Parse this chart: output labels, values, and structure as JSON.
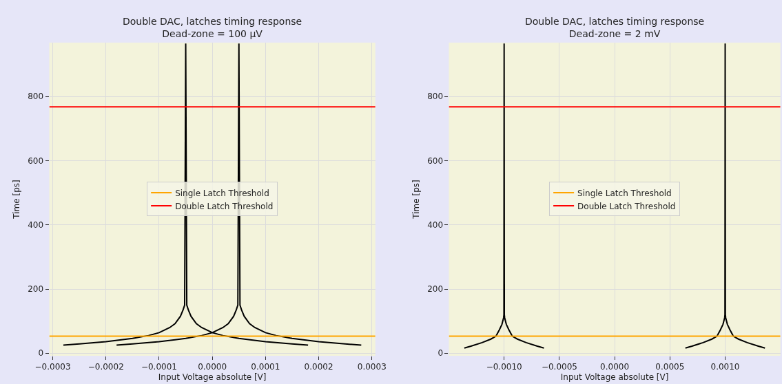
{
  "chart_data": [
    {
      "type": "line",
      "title": "Double DAC, latches timing response\nDead-zone = 100 μV",
      "xlabel": "Input Voltage absolute [V]",
      "ylabel": "Time [ps]",
      "xlim": [
        -0.0003065,
        0.0003065
      ],
      "ylim": [
        -8,
        968
      ],
      "xticks": [
        {
          "value": -0.0003,
          "label": "−0.0003"
        },
        {
          "value": -0.0002,
          "label": "−0.0002"
        },
        {
          "value": -0.0001,
          "label": "−0.0001"
        },
        {
          "value": 0,
          "label": "0.0000"
        },
        {
          "value": 0.0001,
          "label": "0.0001"
        },
        {
          "value": 0.0002,
          "label": "0.0002"
        },
        {
          "value": 0.0003,
          "label": "0.0003"
        }
      ],
      "yticks": [
        0,
        200,
        400,
        600,
        800
      ],
      "grid": true,
      "legend": "center",
      "series": [
        {
          "color": "#000000",
          "x": [
            -0.00028,
            -0.00025,
            -0.0002,
            -0.00015,
            -0.00012,
            -0.0001,
            -8e-05,
            -7e-05,
            -6e-05,
            -5.5e-05,
            -5.2e-05,
            -5e-05,
            -4.8e-05,
            -4.5e-05,
            -4e-05,
            -3e-05,
            -2e-05,
            0,
            2e-05,
            5e-05,
            0.0001,
            0.00015,
            0.00018
          ],
          "values": [
            25,
            29,
            36,
            46,
            55,
            64,
            80,
            92,
            115,
            135,
            150,
            965,
            150,
            135,
            115,
            92,
            80,
            64,
            55,
            46,
            36,
            29,
            25
          ]
        },
        {
          "color": "#000000",
          "x": [
            -0.00018,
            -0.00015,
            -0.0001,
            -5e-05,
            -2e-05,
            0,
            2e-05,
            3e-05,
            4e-05,
            4.5e-05,
            4.8e-05,
            5e-05,
            5.2e-05,
            5.5e-05,
            6e-05,
            7e-05,
            8e-05,
            0.0001,
            0.00012,
            0.00015,
            0.0002,
            0.00025,
            0.00028
          ],
          "values": [
            25,
            29,
            36,
            46,
            55,
            64,
            80,
            92,
            115,
            135,
            150,
            965,
            150,
            135,
            115,
            92,
            80,
            64,
            55,
            46,
            36,
            29,
            25
          ]
        }
      ],
      "ref_lines": [
        {
          "axis": "y",
          "value": 53,
          "label": "Single Latch Threshold",
          "color": "#ffa500"
        },
        {
          "axis": "y",
          "value": 768,
          "label": "Double Latch Threshold",
          "color": "#ff0000"
        }
      ]
    },
    {
      "type": "line",
      "title": "Double DAC, latches timing response\nDead-zone = 2 mV",
      "xlabel": "Input Voltage absolute [V]",
      "ylabel": "Time [ps]",
      "xlim": [
        -0.0015,
        0.0015
      ],
      "ylim": [
        -8,
        968
      ],
      "xticks": [
        {
          "value": -0.001,
          "label": "−0.0010"
        },
        {
          "value": -0.0005,
          "label": "−0.0005"
        },
        {
          "value": 0,
          "label": "0.0000"
        },
        {
          "value": 0.0005,
          "label": "0.0005"
        },
        {
          "value": 0.001,
          "label": "0.0010"
        }
      ],
      "yticks": [
        0,
        200,
        400,
        600,
        800
      ],
      "grid": true,
      "legend": "center",
      "series": [
        {
          "color": "#000000",
          "x": [
            -0.00136,
            -0.0013,
            -0.0012,
            -0.00112,
            -0.001074,
            -0.001043,
            -0.00102,
            -0.001005,
            -0.001002,
            -0.001,
            -0.000998,
            -0.000995,
            -0.00098,
            -0.000957,
            -0.000926,
            -0.00088,
            -0.0008,
            -0.0007,
            -0.00064
          ],
          "values": [
            16,
            22,
            33,
            44,
            53,
            73,
            90,
            110,
            120,
            965,
            120,
            110,
            90,
            73,
            53,
            44,
            33,
            22,
            16
          ]
        },
        {
          "color": "#000000",
          "x": [
            0.00064,
            0.0007,
            0.0008,
            0.00088,
            0.000926,
            0.000957,
            0.00098,
            0.000995,
            0.000998,
            0.001,
            0.001002,
            0.001005,
            0.00102,
            0.001043,
            0.001074,
            0.00112,
            0.0012,
            0.0013,
            0.00136
          ],
          "values": [
            16,
            22,
            33,
            44,
            53,
            73,
            90,
            110,
            120,
            965,
            120,
            110,
            90,
            73,
            53,
            44,
            33,
            22,
            16
          ]
        }
      ],
      "ref_lines": [
        {
          "axis": "y",
          "value": 53,
          "label": "Single Latch Threshold",
          "color": "#ffa500"
        },
        {
          "axis": "y",
          "value": 768,
          "label": "Double Latch Threshold",
          "color": "#ff0000"
        }
      ]
    }
  ]
}
